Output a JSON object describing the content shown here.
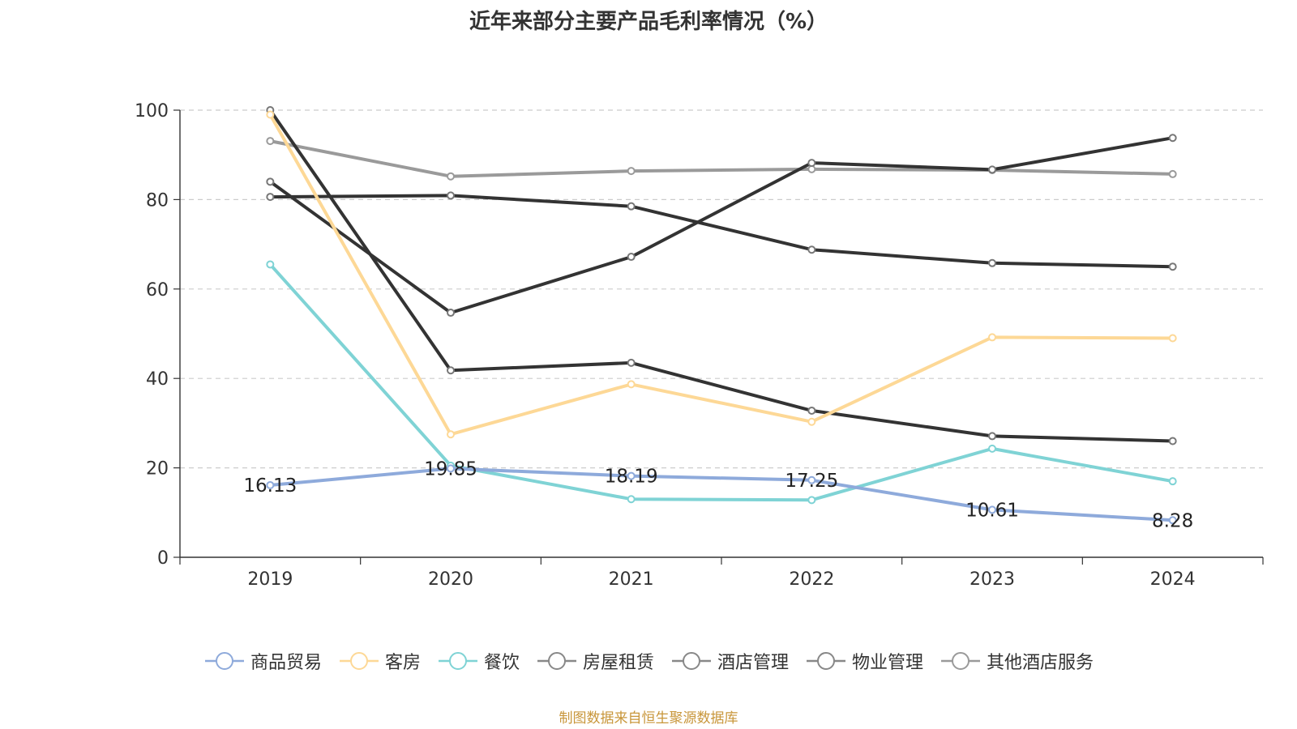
{
  "source_note": "制图数据来自恒生聚源数据库",
  "chart_data": {
    "type": "line",
    "title": "近年来部分主要产品毛利率情况（%）",
    "xlabel": "",
    "ylabel": "",
    "x": [
      "2019",
      "2020",
      "2021",
      "2022",
      "2023",
      "2024"
    ],
    "ylim": [
      0,
      100
    ],
    "yticks": [
      0,
      20,
      40,
      60,
      80,
      100
    ],
    "grid": true,
    "legend_position": "bottom",
    "series": [
      {
        "name": "商品贸易",
        "color": "#8eaadb",
        "values": [
          16.13,
          19.85,
          18.19,
          17.25,
          10.61,
          8.28
        ],
        "data_labels": [
          "16.13",
          "19.85",
          "18.19",
          "17.25",
          "10.61",
          "8.28"
        ]
      },
      {
        "name": "客房",
        "color": "#fdd896",
        "values": [
          99,
          27.5,
          38.7,
          30.3,
          49.2,
          49
        ]
      },
      {
        "name": "餐饮",
        "color": "#7fd3d5",
        "values": [
          65.5,
          20.5,
          13,
          12.8,
          24.3,
          17
        ]
      },
      {
        "name": "房屋租赁",
        "color": "#333333",
        "values": [
          84,
          54.7,
          67.2,
          88.2,
          86.7,
          93.8
        ]
      },
      {
        "name": "酒店管理",
        "color": "#333333",
        "values": [
          100,
          41.8,
          43.5,
          32.8,
          27.1,
          26
        ]
      },
      {
        "name": "物业管理",
        "color": "#333333",
        "values": [
          80.6,
          80.9,
          78.5,
          68.8,
          65.8,
          65
        ]
      },
      {
        "name": "其他酒店服务",
        "color": "#9a9a9a",
        "values": [
          93.1,
          85.2,
          86.4,
          86.8,
          86.6,
          85.7
        ]
      }
    ]
  }
}
